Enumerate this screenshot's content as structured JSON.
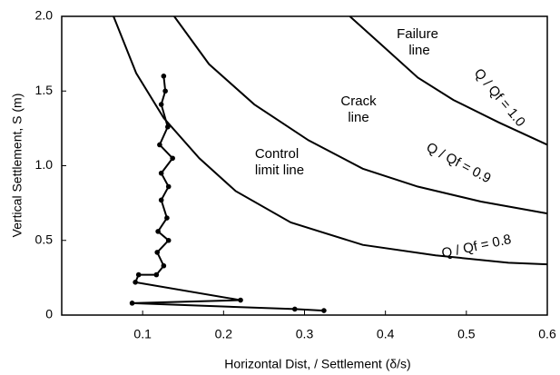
{
  "chart_data": {
    "type": "line",
    "xlabel": "Horizontal Dist, / Settlement  (δ/s)",
    "ylabel": "Vertical Settlement, S (m)",
    "xlim": [
      0,
      0.6
    ],
    "ylim": [
      0,
      2.0
    ],
    "xticks": [
      0.1,
      0.2,
      0.3,
      0.4,
      0.5,
      0.6
    ],
    "yticks": [
      0,
      0.5,
      {
        "value": 1.0,
        "label": "1.0"
      },
      1.5,
      {
        "value": 2.0,
        "label": "2.0"
      }
    ],
    "series": [
      {
        "color": "#000000",
        "markers": true,
        "x": [
          0.126,
          0.128,
          0.123,
          0.131,
          0.121,
          0.137,
          0.123,
          0.132,
          0.123,
          0.13,
          0.119,
          0.132,
          0.118,
          0.126,
          0.117,
          0.095,
          0.091,
          0.221,
          0.087,
          0.288,
          0.324
        ],
        "values": [
          1.6,
          1.5,
          1.41,
          1.26,
          1.14,
          1.05,
          0.95,
          0.86,
          0.77,
          0.65,
          0.56,
          0.5,
          0.42,
          0.33,
          0.27,
          0.27,
          0.22,
          0.1,
          0.08,
          0.04,
          0.03
        ]
      },
      {
        "color": "#000000",
        "markers": false,
        "x": [
          0.064,
          0.092,
          0.126,
          0.17,
          0.215,
          0.283,
          0.372,
          0.462,
          0.552,
          0.6
        ],
        "values": [
          2.0,
          1.62,
          1.32,
          1.05,
          0.83,
          0.62,
          0.47,
          0.4,
          0.35,
          0.34
        ]
      },
      {
        "color": "#000000",
        "markers": false,
        "x": [
          0.139,
          0.182,
          0.238,
          0.305,
          0.372,
          0.44,
          0.518,
          0.6
        ],
        "values": [
          2.0,
          1.68,
          1.41,
          1.17,
          0.98,
          0.86,
          0.76,
          0.68
        ]
      },
      {
        "color": "#000000",
        "markers": false,
        "x": [
          0.356,
          0.395,
          0.44,
          0.484,
          0.54,
          0.6
        ],
        "values": [
          2.0,
          1.81,
          1.59,
          1.44,
          1.29,
          1.14
        ]
      }
    ],
    "annotations": [
      "Failure",
      "line",
      "Crack",
      "line",
      "Control",
      "limit line",
      "Q / Qf = 1.0",
      "Q / Qf = 0.9",
      "Q / Qf = 0.8"
    ]
  }
}
